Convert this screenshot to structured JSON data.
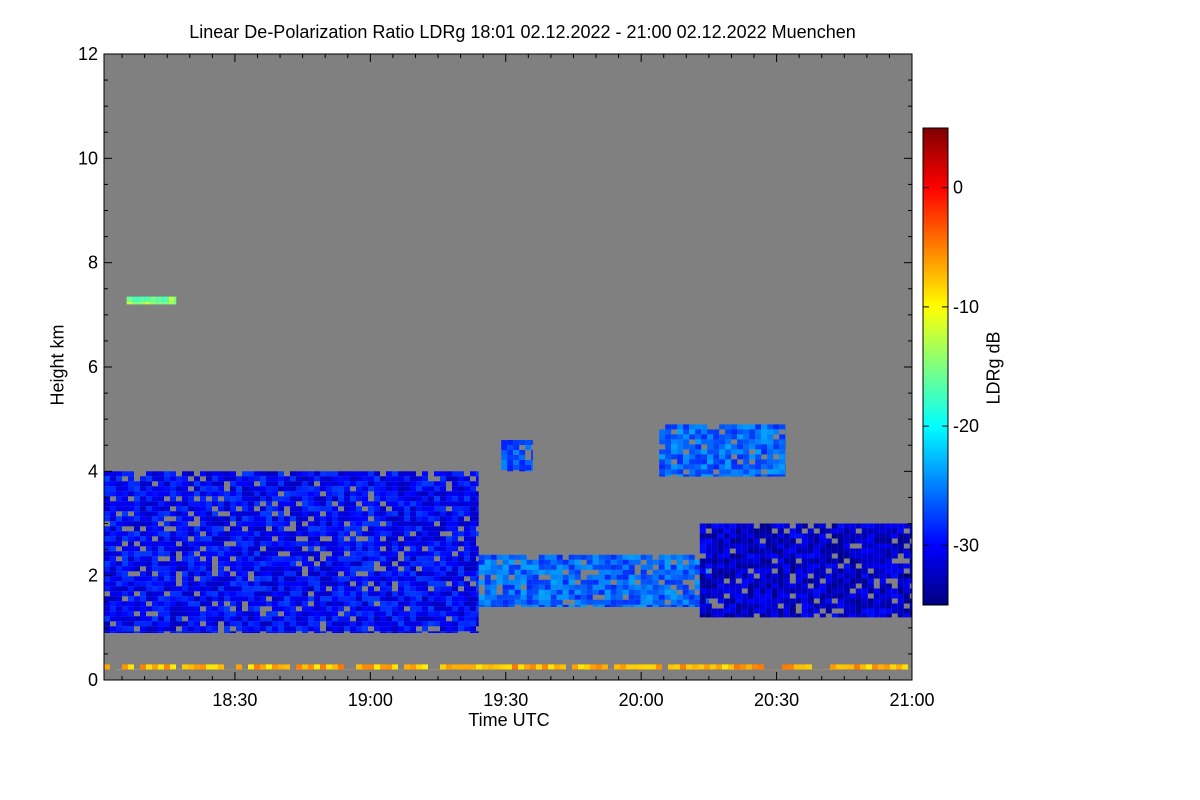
{
  "chart_data": {
    "type": "heatmap",
    "title": "Linear De-Polarization Ratio LDRg   18:01 02.12.2022 - 21:00 02.12.2022 Muenchen",
    "xlabel": "Time UTC",
    "ylabel": "Height km",
    "colorbar_label": "LDRg dB",
    "x_range_minutes_utc": [
      1081,
      1260
    ],
    "x_ticks": [
      {
        "label": "18:30",
        "minute": 1110
      },
      {
        "label": "19:00",
        "minute": 1140
      },
      {
        "label": "19:30",
        "minute": 1170
      },
      {
        "label": "20:00",
        "minute": 1200
      },
      {
        "label": "20:30",
        "minute": 1230
      },
      {
        "label": "21:00",
        "minute": 1260
      }
    ],
    "y_range_km": [
      0,
      12
    ],
    "y_ticks": [
      0,
      2,
      4,
      6,
      8,
      10,
      12
    ],
    "colorbar_range_db": [
      -35,
      5
    ],
    "colorbar_ticks": [
      0,
      -10,
      -20,
      -30
    ],
    "background_no_signal_color": "#808080",
    "colormap": [
      "#00007f",
      "#0000ff",
      "#007fff",
      "#00ffff",
      "#7fff7f",
      "#ffff00",
      "#ff7f00",
      "#ff0000",
      "#7f0000"
    ],
    "features": [
      {
        "name": "lower cloud layer",
        "start": 1081,
        "end": 1164,
        "base_km": 0.9,
        "top_km": 4.0,
        "ldr_db": -30
      },
      {
        "name": "boundary layer mixed band",
        "start": 1164,
        "end": 1215,
        "base_km": 1.4,
        "top_km": 2.4,
        "ldr_db": -26
      },
      {
        "name": "cloud layer",
        "start": 1213,
        "end": 1260,
        "base_km": 1.2,
        "top_km": 3.0,
        "ldr_db": -32
      },
      {
        "name": "cloud patch",
        "start": 1169,
        "end": 1176,
        "base_km": 4.0,
        "top_km": 4.6,
        "ldr_db": -27
      },
      {
        "name": "cloud patch",
        "start": 1204,
        "end": 1232,
        "base_km": 3.9,
        "top_km": 4.9,
        "ldr_db": -26
      },
      {
        "name": "surface aerosol layer",
        "start": 1081,
        "end": 1260,
        "base_km": 0.2,
        "top_km": 0.3,
        "ldr_db": -7
      },
      {
        "name": "thin high layer",
        "start": 1086,
        "end": 1097,
        "base_km": 7.2,
        "top_km": 7.35,
        "ldr_db": -15
      }
    ]
  }
}
